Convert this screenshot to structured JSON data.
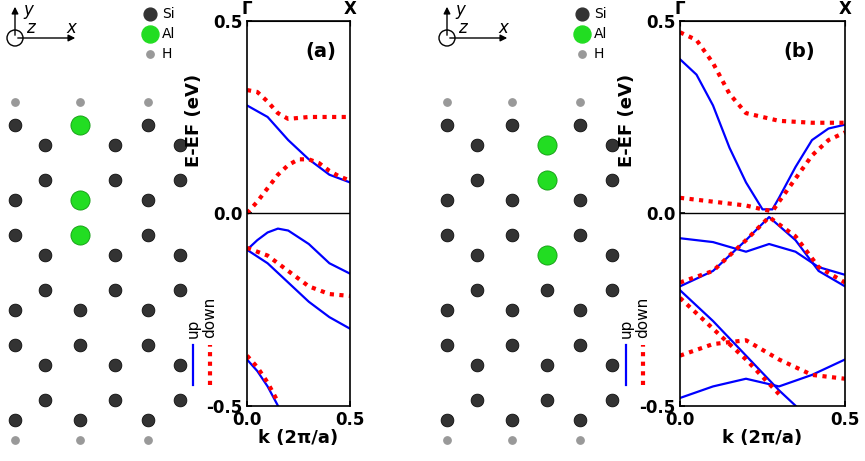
{
  "structures": [
    {
      "axis_names": {
        "x": "x",
        "y": "y",
        "z": "z"
      },
      "species": [
        {
          "name": "Si",
          "color": "#333333"
        },
        {
          "name": "Al",
          "color": "#22dd22"
        },
        {
          "name": "H",
          "color": "#999999"
        }
      ]
    },
    {
      "axis_names": {
        "x": "x",
        "y": "y",
        "z": "z"
      },
      "species": [
        {
          "name": "Si",
          "color": "#333333"
        },
        {
          "name": "Al",
          "color": "#22dd22"
        },
        {
          "name": "H",
          "color": "#999999"
        }
      ]
    }
  ],
  "chart_data": [
    {
      "type": "line",
      "panel_label": "(a)",
      "xlabel": "k (2π/a)",
      "ylabel": "E-EF (eV)",
      "xlim": [
        0.0,
        0.5
      ],
      "ylim": [
        -0.5,
        0.5
      ],
      "xticks": [
        0.0,
        0.5
      ],
      "yticks": [
        -0.5,
        0.0,
        0.5
      ],
      "top_ticks": [
        {
          "value": 0.0,
          "label": "Γ"
        },
        {
          "value": 0.5,
          "label": "X"
        }
      ],
      "fermi_level": 0.0,
      "series": [
        {
          "name": "up",
          "color": "#0000ff",
          "line_style": "solid",
          "bands": [
            {
              "x": [
                0.0,
                0.1,
                0.2,
                0.3,
                0.4,
                0.5
              ],
              "values": [
                0.28,
                0.25,
                0.19,
                0.14,
                0.1,
                0.08
              ]
            },
            {
              "x": [
                0.0,
                0.05,
                0.1,
                0.15,
                0.2,
                0.3,
                0.4,
                0.5
              ],
              "values": [
                -0.095,
                -0.07,
                -0.05,
                -0.04,
                -0.045,
                -0.08,
                -0.13,
                -0.157
              ]
            },
            {
              "x": [
                0.0,
                0.1,
                0.2,
                0.3,
                0.4,
                0.5
              ],
              "values": [
                -0.095,
                -0.13,
                -0.18,
                -0.23,
                -0.27,
                -0.3
              ]
            },
            {
              "x": [
                0.0,
                0.05,
                0.1,
                0.15
              ],
              "values": [
                -0.38,
                -0.41,
                -0.45,
                -0.5
              ]
            }
          ]
        },
        {
          "name": "down",
          "color": "#ff0000",
          "line_style": "dotted",
          "bands": [
            {
              "x": [
                0.0,
                0.05,
                0.1,
                0.15,
                0.2,
                0.3,
                0.4,
                0.5
              ],
              "values": [
                0.32,
                0.315,
                0.29,
                0.26,
                0.245,
                0.25,
                0.25,
                0.25
              ]
            },
            {
              "x": [
                0.0,
                0.05,
                0.1,
                0.15,
                0.2,
                0.25,
                0.3,
                0.35,
                0.4,
                0.45,
                0.5
              ],
              "values": [
                0.0,
                0.03,
                0.065,
                0.1,
                0.125,
                0.14,
                0.14,
                0.13,
                0.11,
                0.095,
                0.085
              ]
            },
            {
              "x": [
                0.0,
                0.1,
                0.2,
                0.3,
                0.4,
                0.5
              ],
              "values": [
                -0.09,
                -0.11,
                -0.15,
                -0.19,
                -0.21,
                -0.215
              ]
            },
            {
              "x": [
                0.0,
                0.05,
                0.1,
                0.15
              ],
              "values": [
                -0.37,
                -0.4,
                -0.44,
                -0.49
              ]
            }
          ]
        }
      ]
    },
    {
      "type": "line",
      "panel_label": "(b)",
      "xlabel": "k (2π/a)",
      "ylabel": "E-EF (eV)",
      "xlim": [
        0.0,
        0.5
      ],
      "ylim": [
        -0.5,
        0.5
      ],
      "xticks": [
        0.0,
        0.5
      ],
      "yticks": [
        -0.5,
        0.0,
        0.5
      ],
      "top_ticks": [
        {
          "value": 0.0,
          "label": "Γ"
        },
        {
          "value": 0.5,
          "label": "X"
        }
      ],
      "fermi_level": 0.0,
      "series": [
        {
          "name": "up",
          "color": "#0000ff",
          "line_style": "solid",
          "bands": [
            {
              "x": [
                0.0,
                0.05,
                0.1,
                0.15,
                0.2,
                0.25,
                0.28,
                0.3,
                0.35,
                0.4,
                0.45,
                0.5
              ],
              "values": [
                0.4,
                0.36,
                0.28,
                0.17,
                0.08,
                0.01,
                0.01,
                0.04,
                0.12,
                0.19,
                0.22,
                0.23
              ]
            },
            {
              "x": [
                0.0,
                0.1,
                0.2,
                0.27,
                0.35,
                0.42,
                0.5
              ],
              "values": [
                -0.065,
                -0.075,
                -0.1,
                -0.08,
                -0.1,
                -0.14,
                -0.16
              ]
            },
            {
              "x": [
                0.0,
                0.1,
                0.2,
                0.27,
                0.35,
                0.42,
                0.5
              ],
              "values": [
                -0.19,
                -0.15,
                -0.07,
                -0.01,
                -0.07,
                -0.15,
                -0.19
              ]
            },
            {
              "x": [
                0.0,
                0.1,
                0.2,
                0.3,
                0.35
              ],
              "values": [
                -0.2,
                -0.28,
                -0.37,
                -0.46,
                -0.5
              ]
            },
            {
              "x": [
                0.0,
                0.1,
                0.2,
                0.3,
                0.4,
                0.5
              ],
              "values": [
                -0.48,
                -0.45,
                -0.43,
                -0.45,
                -0.42,
                -0.38
              ]
            }
          ]
        },
        {
          "name": "down",
          "color": "#ff0000",
          "line_style": "dotted",
          "bands": [
            {
              "x": [
                0.0,
                0.05,
                0.1,
                0.15,
                0.2,
                0.3,
                0.4,
                0.5
              ],
              "values": [
                0.47,
                0.45,
                0.39,
                0.31,
                0.26,
                0.24,
                0.235,
                0.235
              ]
            },
            {
              "x": [
                0.0,
                0.1,
                0.2,
                0.25,
                0.28,
                0.3,
                0.35,
                0.4,
                0.45,
                0.5
              ],
              "values": [
                0.04,
                0.03,
                0.02,
                0.01,
                0.005,
                0.03,
                0.09,
                0.15,
                0.19,
                0.21
              ]
            },
            {
              "x": [
                0.0,
                0.1,
                0.2,
                0.27,
                0.35,
                0.42,
                0.5
              ],
              "values": [
                -0.18,
                -0.15,
                -0.07,
                -0.01,
                -0.06,
                -0.14,
                -0.18
              ]
            },
            {
              "x": [
                0.0,
                0.1,
                0.2,
                0.3
              ],
              "values": [
                -0.22,
                -0.3,
                -0.38,
                -0.47
              ]
            },
            {
              "x": [
                0.0,
                0.1,
                0.2,
                0.3,
                0.4,
                0.5
              ],
              "values": [
                -0.37,
                -0.34,
                -0.33,
                -0.38,
                -0.42,
                -0.43
              ]
            }
          ]
        }
      ]
    }
  ]
}
